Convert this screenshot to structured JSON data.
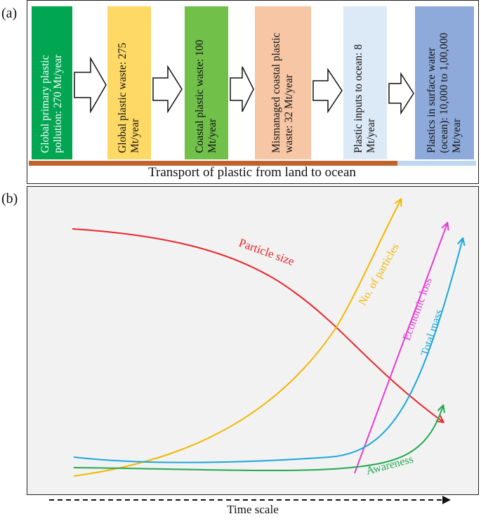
{
  "panel_a": {
    "label": "(a)",
    "stages": [
      {
        "text": "Global primary plastic pollution: 270 Mt/year",
        "color": "#00a651",
        "text_color": "#ffffff"
      },
      {
        "text": "Global plastic waste: 275 Mt/year",
        "color": "#ffd966",
        "text_color": "#111111"
      },
      {
        "text": "Coastal plastic waste: 100 Mt/year",
        "color": "#70c04a",
        "text_color": "#111111"
      },
      {
        "text": "Mismanaged coastal plastic waste: 32 Mt/year",
        "color": "#f7c6a5",
        "text_color": "#111111"
      },
      {
        "text": "Plastic inputs to ocean: 8 Mt/year",
        "color": "#dce9f6",
        "text_color": "#111111"
      },
      {
        "text": "Plastics in surface water (ocean): 10,000 to 1,00,000 Mt/year",
        "color": "#8eaadb",
        "text_color": "#111111"
      }
    ],
    "transport_label": "Transport of plastic from land to ocean",
    "land_bar_color": "#c0622b",
    "ocean_bar_color": "#bdd7ee"
  },
  "panel_b": {
    "label": "(b)",
    "x_axis_label": "Time scale",
    "curves": [
      {
        "name": "Particle size",
        "color": "#e8262c",
        "trend": "decreasing"
      },
      {
        "name": "No. of particles",
        "color": "#f2b800",
        "trend": "increasing"
      },
      {
        "name": "Economic loss",
        "color": "#e63bd6",
        "trend": "increasing"
      },
      {
        "name": "Total mass",
        "color": "#1aa7d9",
        "trend": "increasing"
      },
      {
        "name": "Awareness",
        "color": "#22a94f",
        "trend": "increasing"
      }
    ]
  }
}
